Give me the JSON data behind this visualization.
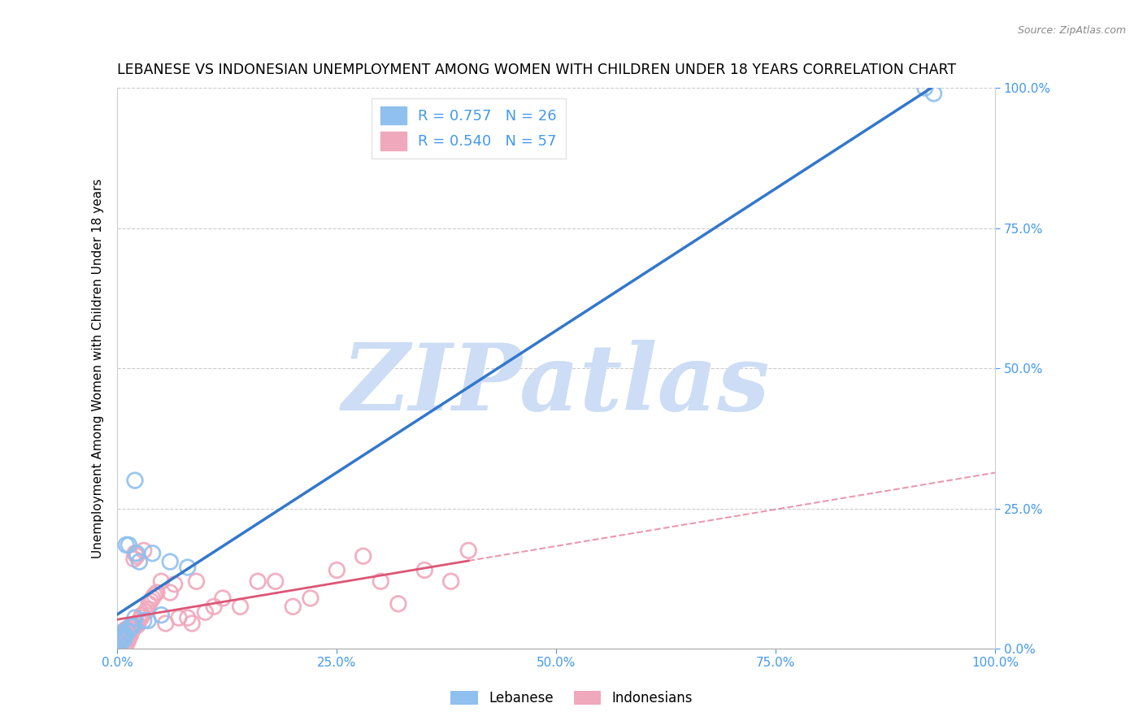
{
  "title": "LEBANESE VS INDONESIAN UNEMPLOYMENT AMONG WOMEN WITH CHILDREN UNDER 18 YEARS CORRELATION CHART",
  "source": "Source: ZipAtlas.com",
  "ylabel": "Unemployment Among Women with Children Under 18 years",
  "xlim": [
    0,
    1.0
  ],
  "ylim": [
    0,
    1.0
  ],
  "xtick_vals": [
    0.0,
    0.25,
    0.5,
    0.75,
    1.0
  ],
  "xtick_labels": [
    "0.0%",
    "25.0%",
    "50.0%",
    "75.0%",
    "100.0%"
  ],
  "ytick_vals": [
    0.0,
    0.25,
    0.5,
    0.75,
    1.0
  ],
  "ytick_labels": [
    "0.0%",
    "25.0%",
    "50.0%",
    "75.0%",
    "100.0%"
  ],
  "background_color": "#ffffff",
  "grid_color": "#cccccc",
  "watermark": "ZIPatlas",
  "watermark_color": "#ccddf5",
  "lebanese_scatter_color": "#90c0ee",
  "indonesian_scatter_color": "#f0a8bc",
  "lebanese_line_color": "#3377cc",
  "indonesian_line_color": "#dd5577",
  "axis_tick_color": "#4499ee",
  "lebanese_R": 0.757,
  "lebanese_N": 26,
  "indonesian_R": 0.54,
  "indonesian_N": 57,
  "lebanese_x": [
    0.002,
    0.003,
    0.004,
    0.005,
    0.006,
    0.007,
    0.008,
    0.009,
    0.01,
    0.012,
    0.013,
    0.015,
    0.016,
    0.018,
    0.02,
    0.022,
    0.025,
    0.03,
    0.035,
    0.04,
    0.05,
    0.06,
    0.08,
    0.02,
    0.92,
    0.93
  ],
  "lebanese_y": [
    0.01,
    0.015,
    0.02,
    0.025,
    0.03,
    0.015,
    0.02,
    0.025,
    0.185,
    0.03,
    0.185,
    0.04,
    0.04,
    0.04,
    0.055,
    0.17,
    0.155,
    0.05,
    0.05,
    0.17,
    0.06,
    0.155,
    0.145,
    0.3,
    1.0,
    0.99
  ],
  "indonesian_x": [
    0.001,
    0.002,
    0.003,
    0.004,
    0.005,
    0.006,
    0.007,
    0.008,
    0.009,
    0.01,
    0.011,
    0.012,
    0.013,
    0.014,
    0.015,
    0.016,
    0.017,
    0.018,
    0.019,
    0.02,
    0.021,
    0.022,
    0.023,
    0.025,
    0.027,
    0.028,
    0.03,
    0.032,
    0.034,
    0.036,
    0.038,
    0.04,
    0.042,
    0.045,
    0.05,
    0.055,
    0.06,
    0.065,
    0.07,
    0.08,
    0.085,
    0.09,
    0.1,
    0.11,
    0.12,
    0.14,
    0.16,
    0.18,
    0.2,
    0.22,
    0.25,
    0.28,
    0.3,
    0.32,
    0.35,
    0.38,
    0.4
  ],
  "indonesian_y": [
    0.005,
    0.008,
    0.012,
    0.015,
    0.018,
    0.022,
    0.025,
    0.028,
    0.032,
    0.035,
    0.01,
    0.015,
    0.018,
    0.022,
    0.025,
    0.03,
    0.033,
    0.038,
    0.16,
    0.17,
    0.04,
    0.165,
    0.042,
    0.05,
    0.055,
    0.06,
    0.175,
    0.065,
    0.07,
    0.08,
    0.085,
    0.09,
    0.095,
    0.1,
    0.12,
    0.045,
    0.1,
    0.115,
    0.055,
    0.055,
    0.045,
    0.12,
    0.065,
    0.075,
    0.09,
    0.075,
    0.12,
    0.12,
    0.075,
    0.09,
    0.14,
    0.165,
    0.12,
    0.08,
    0.14,
    0.12,
    0.175
  ],
  "title_fontsize": 12.5,
  "axis_label_fontsize": 11,
  "tick_fontsize": 11,
  "legend_fontsize": 13,
  "scatter_size": 180,
  "scatter_lw": 2.0
}
